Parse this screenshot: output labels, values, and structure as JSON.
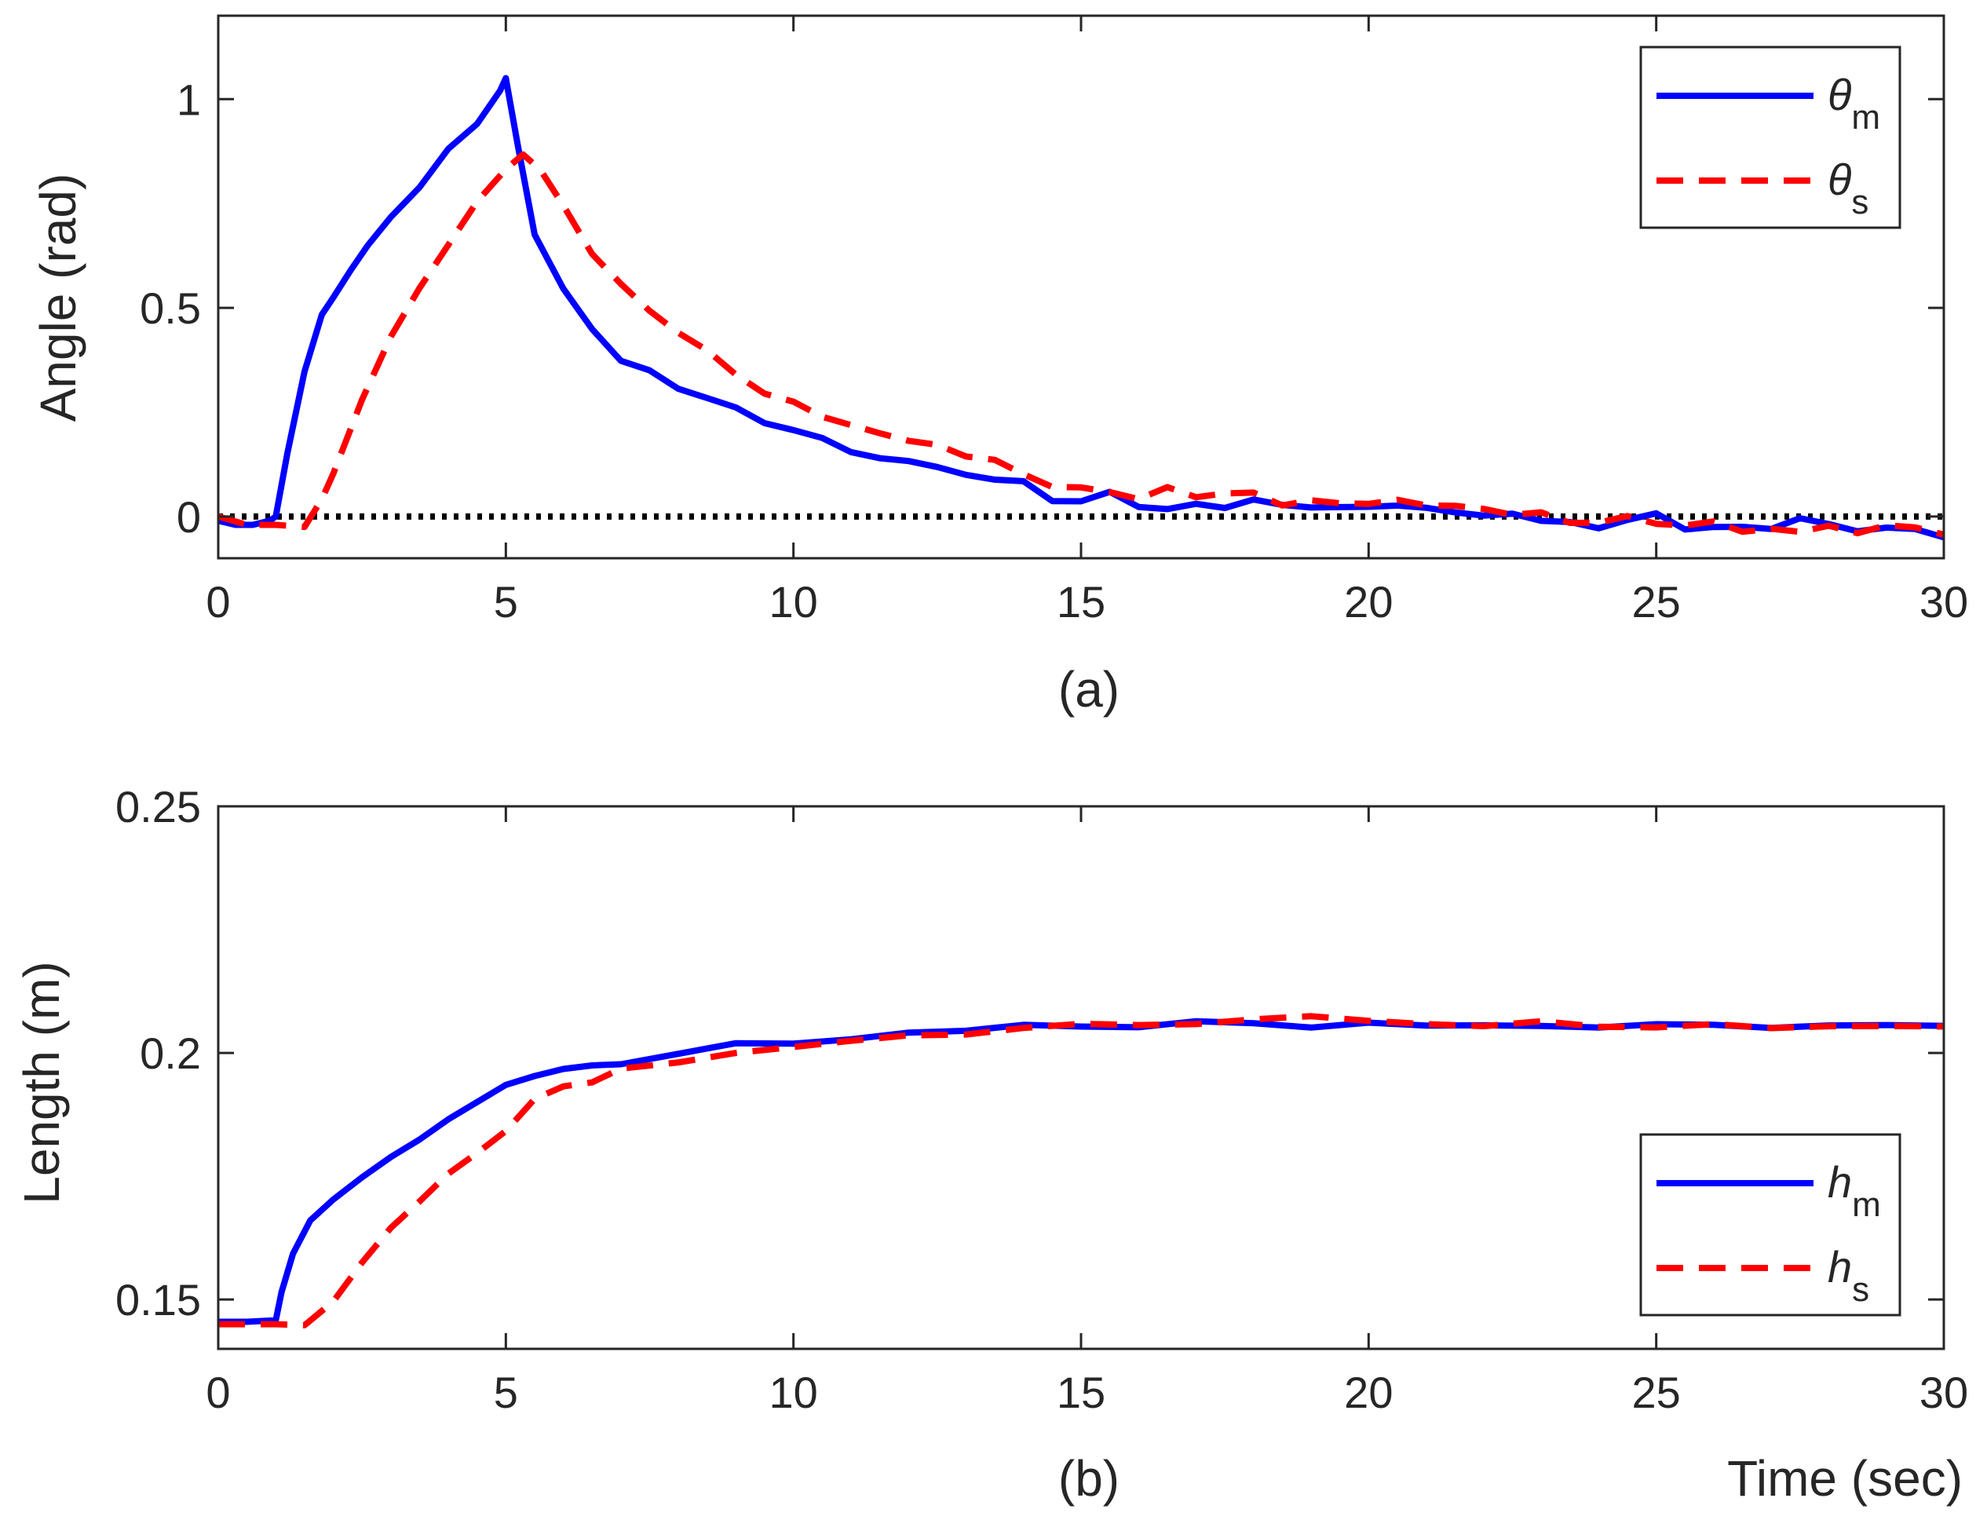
{
  "chart_data": [
    {
      "type": "line",
      "caption": "(a)",
      "xlabel": "",
      "ylabel": "Angle (rad)",
      "xlim": [
        0,
        30
      ],
      "ylim": [
        -0.1,
        1.2
      ],
      "xticks": [
        0,
        5,
        10,
        15,
        20,
        25,
        30
      ],
      "xtick_labels": [
        "0",
        "5",
        "10",
        "15",
        "20",
        "25",
        "30"
      ],
      "yticks": [
        0,
        0.5,
        1
      ],
      "ytick_labels": [
        "0",
        "0.5",
        "1"
      ],
      "legend_position": "top-right",
      "reference_line": {
        "y": 0,
        "style": "dotted",
        "color": "#000000"
      },
      "series": [
        {
          "name": "θm",
          "base": "θ",
          "sub": "m",
          "color": "#0000ff",
          "style": "solid",
          "x": [
            0,
            0.3,
            0.6,
            0.9,
            1.0,
            1.2,
            1.5,
            1.8,
            2.0,
            2.3,
            2.6,
            3.0,
            3.5,
            4.0,
            4.5,
            4.9,
            5.0,
            5.2,
            5.5,
            6.0,
            6.5,
            7.0,
            7.5,
            8.0,
            8.5,
            9.0,
            9.5,
            10.0,
            10.5,
            11.0,
            11.5,
            12.0,
            12.5,
            13.0,
            13.5,
            14.0,
            14.5,
            15.0,
            15.5,
            16.0,
            16.5,
            17.0,
            17.5,
            18.0,
            18.5,
            19.0,
            19.5,
            20.0,
            20.5,
            21.0,
            21.5,
            22.0,
            22.5,
            23.0,
            23.5,
            24.0,
            24.5,
            25.0,
            25.5,
            26.0,
            26.5,
            27.0,
            27.5,
            28.0,
            28.5,
            29.0,
            29.5,
            30.0
          ],
          "y": [
            -0.01,
            -0.02,
            -0.02,
            -0.01,
            0.0,
            0.15,
            0.35,
            0.48,
            0.53,
            0.6,
            0.66,
            0.72,
            0.79,
            0.88,
            0.94,
            1.02,
            1.05,
            0.9,
            0.68,
            0.54,
            0.45,
            0.38,
            0.34,
            0.31,
            0.29,
            0.25,
            0.23,
            0.21,
            0.18,
            0.16,
            0.14,
            0.13,
            0.12,
            0.1,
            0.09,
            0.08,
            0.04,
            0.04,
            0.05,
            0.03,
            0.02,
            0.02,
            0.03,
            0.04,
            0.02,
            0.03,
            0.02,
            0.02,
            0.03,
            0.02,
            0.01,
            0.0,
            0.01,
            -0.01,
            -0.02,
            -0.02,
            -0.01,
            0.0,
            -0.02,
            -0.03,
            -0.03,
            -0.02,
            -0.01,
            -0.02,
            -0.03,
            -0.03,
            -0.03,
            -0.05
          ]
        },
        {
          "name": "θs",
          "base": "θ",
          "sub": "s",
          "color": "#ff0000",
          "style": "dashed",
          "x": [
            0,
            0.5,
            1.0,
            1.5,
            1.8,
            2.0,
            2.5,
            3.0,
            3.5,
            4.0,
            4.5,
            5.0,
            5.3,
            5.6,
            6.0,
            6.5,
            7.0,
            7.5,
            8.0,
            8.5,
            9.0,
            9.5,
            10.0,
            10.5,
            11.0,
            11.5,
            12.0,
            12.5,
            13.0,
            13.5,
            14.0,
            14.5,
            15.0,
            15.5,
            16.0,
            16.5,
            17.0,
            17.5,
            18.0,
            18.5,
            19.0,
            19.5,
            20.0,
            20.5,
            21.0,
            21.5,
            22.0,
            22.5,
            23.0,
            23.5,
            24.0,
            24.5,
            25.0,
            25.5,
            26.0,
            26.5,
            27.0,
            27.5,
            28.0,
            28.5,
            29.0,
            29.5,
            30.0
          ],
          "y": [
            0.0,
            -0.02,
            -0.02,
            -0.02,
            0.05,
            0.1,
            0.28,
            0.43,
            0.55,
            0.65,
            0.75,
            0.84,
            0.87,
            0.83,
            0.74,
            0.64,
            0.55,
            0.49,
            0.45,
            0.39,
            0.34,
            0.3,
            0.27,
            0.24,
            0.22,
            0.2,
            0.18,
            0.17,
            0.15,
            0.13,
            0.1,
            0.08,
            0.06,
            0.06,
            0.05,
            0.06,
            0.05,
            0.06,
            0.05,
            0.03,
            0.04,
            0.03,
            0.03,
            0.04,
            0.03,
            0.02,
            0.02,
            0.01,
            0.0,
            -0.01,
            -0.01,
            -0.01,
            -0.01,
            -0.02,
            -0.02,
            -0.03,
            -0.03,
            -0.04,
            -0.02,
            -0.04,
            -0.02,
            -0.03,
            -0.04
          ]
        }
      ]
    },
    {
      "type": "line",
      "caption": "(b)",
      "xlabel": "Time (sec)",
      "ylabel": "Length (m)",
      "xlim": [
        0,
        30
      ],
      "ylim": [
        0.14,
        0.25
      ],
      "xticks": [
        0,
        5,
        10,
        15,
        20,
        25,
        30
      ],
      "xtick_labels": [
        "0",
        "5",
        "10",
        "15",
        "20",
        "25",
        "30"
      ],
      "yticks": [
        0.15,
        0.2,
        0.25
      ],
      "ytick_labels": [
        "0.15",
        "0.2",
        "0.25"
      ],
      "legend_position": "bottom-right",
      "series": [
        {
          "name": "hm",
          "base": "h",
          "sub": "m",
          "color": "#0000ff",
          "style": "solid",
          "x": [
            0,
            0.5,
            1.0,
            1.1,
            1.3,
            1.6,
            2.0,
            2.5,
            3.0,
            3.5,
            4.0,
            4.5,
            5.0,
            5.5,
            6.0,
            6.5,
            7.0,
            8.0,
            9.0,
            10.0,
            11.0,
            12.0,
            13.0,
            14.0,
            15.0,
            16.0,
            17.0,
            18.0,
            19.0,
            20.0,
            21.0,
            22.0,
            23.0,
            24.0,
            25.0,
            26.0,
            27.0,
            28.0,
            29.0,
            30.0
          ],
          "y": [
            0.1455,
            0.1455,
            0.1458,
            0.1515,
            0.159,
            0.166,
            0.1705,
            0.1745,
            0.179,
            0.1825,
            0.1865,
            0.19,
            0.1935,
            0.1955,
            0.1965,
            0.1975,
            0.198,
            0.2,
            0.2015,
            0.202,
            0.203,
            0.204,
            0.2045,
            0.2055,
            0.2055,
            0.2055,
            0.206,
            0.206,
            0.2055,
            0.206,
            0.2055,
            0.2055,
            0.2055,
            0.2055,
            0.2055,
            0.2055,
            0.2055,
            0.2055,
            0.2055,
            0.2055
          ]
        },
        {
          "name": "hs",
          "base": "h",
          "sub": "s",
          "color": "#ff0000",
          "style": "dashed",
          "x": [
            0,
            0.5,
            1.0,
            1.5,
            2.0,
            2.5,
            3.0,
            3.5,
            4.0,
            4.5,
            5.0,
            5.5,
            6.0,
            6.5,
            7.0,
            8.0,
            9.0,
            10.0,
            11.0,
            12.0,
            13.0,
            14.0,
            15.0,
            16.0,
            17.0,
            18.0,
            19.0,
            20.0,
            21.0,
            22.0,
            23.0,
            24.0,
            25.0,
            26.0,
            27.0,
            28.0,
            29.0,
            30.0
          ],
          "y": [
            0.145,
            0.145,
            0.145,
            0.145,
            0.1495,
            0.1575,
            0.1645,
            0.17,
            0.1755,
            0.1795,
            0.1845,
            0.1905,
            0.193,
            0.1945,
            0.1965,
            0.1985,
            0.2,
            0.201,
            0.2025,
            0.2035,
            0.204,
            0.205,
            0.2055,
            0.206,
            0.206,
            0.2065,
            0.2075,
            0.2065,
            0.206,
            0.2055,
            0.206,
            0.2055,
            0.2055,
            0.2055,
            0.205,
            0.2055,
            0.2055,
            0.2055
          ]
        }
      ]
    }
  ]
}
